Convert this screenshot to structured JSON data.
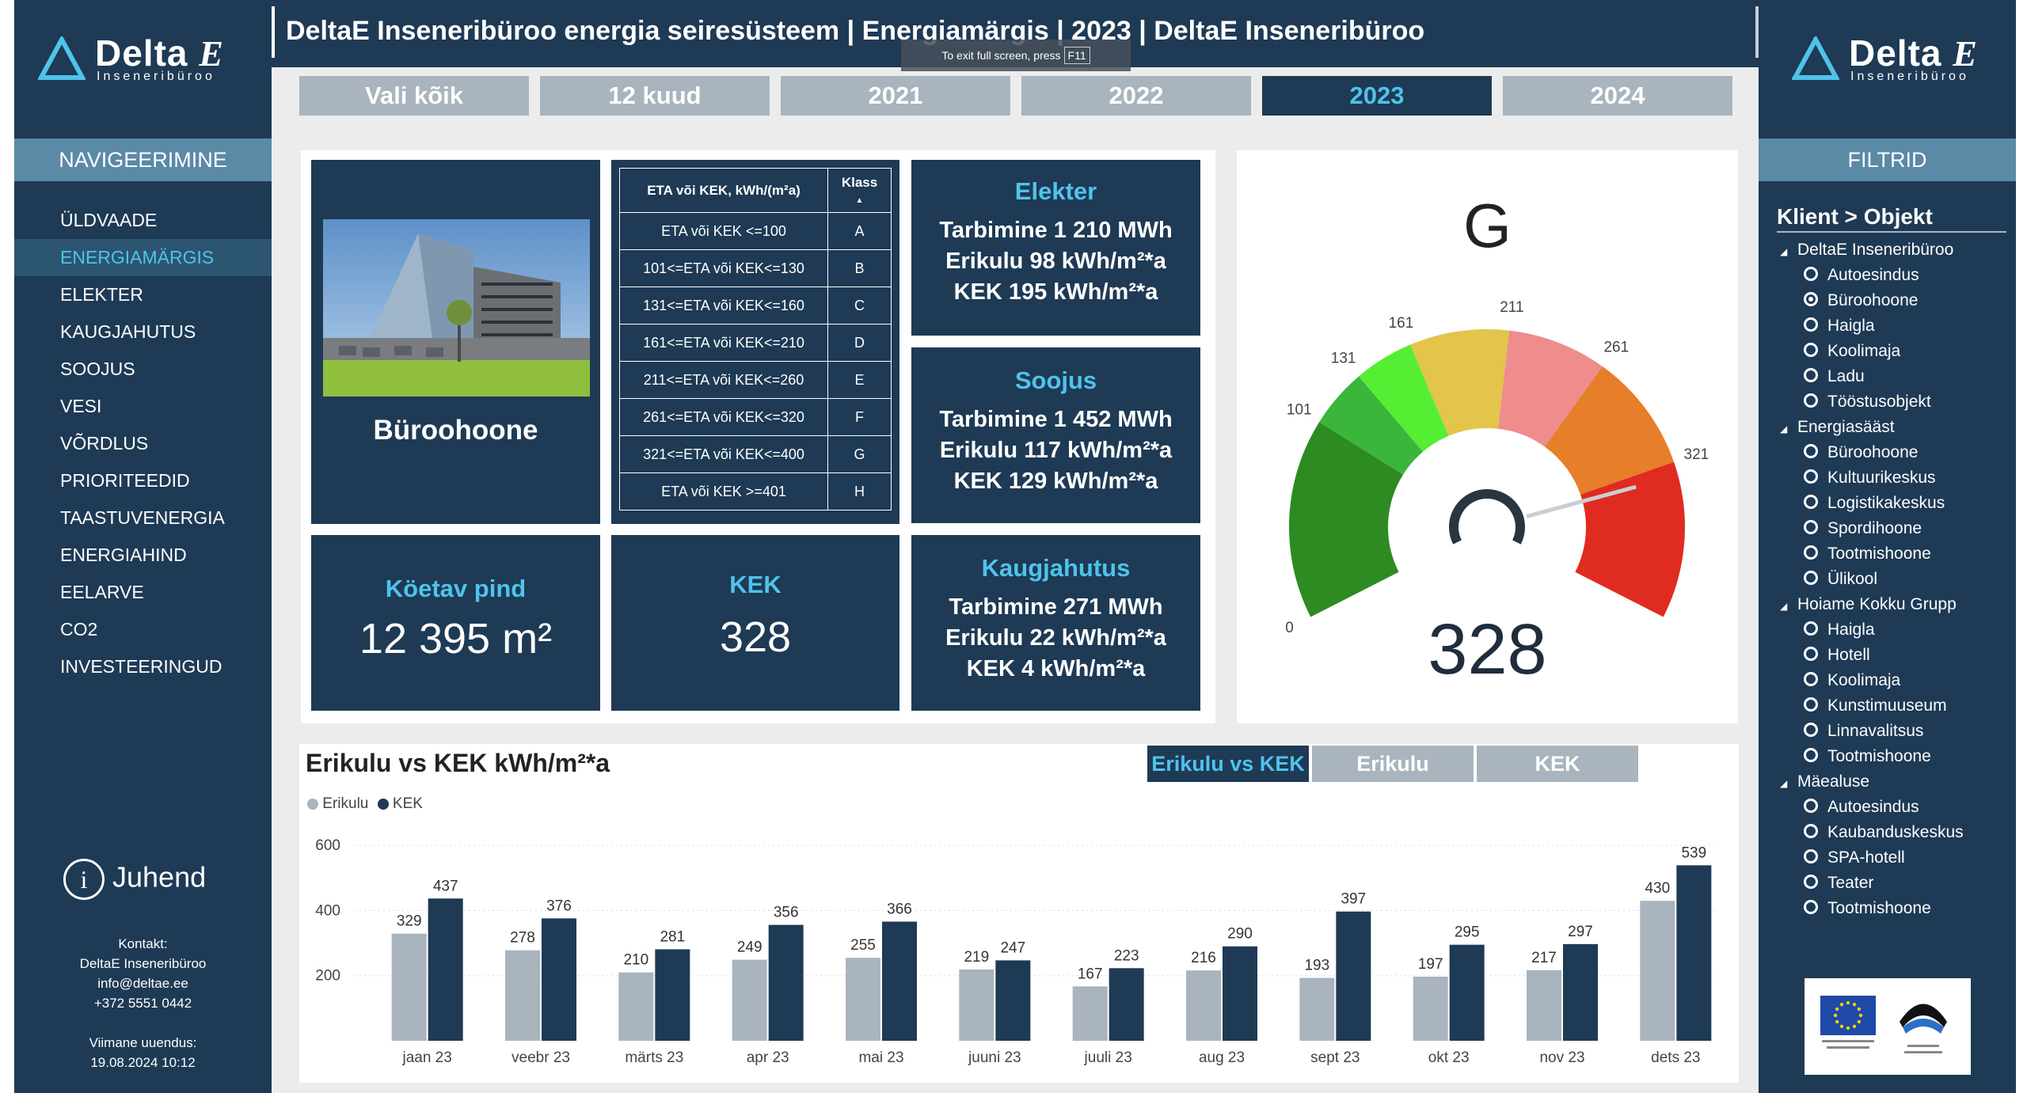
{
  "logo": {
    "brand": "Delta",
    "brand_e": "E",
    "sub": "Inseneribüroo"
  },
  "title": "DeltaE Inseneribüroo energia seiresüsteem | Energiamärgis | 2023 | DeltaE Inseneribüroo",
  "fullscreen_hint": {
    "text": "To exit full screen, press",
    "key": "F11"
  },
  "nav": {
    "header": "NAVIGEERIMINE",
    "items": [
      "ÜLDVAADE",
      "ENERGIAMÄRGIS",
      "ELEKTER",
      "KAUGJAHUTUS",
      "SOOJUS",
      "VESI",
      "VÕRDLUS",
      "PRIORITEEDID",
      "TAASTUVENERGIA",
      "ENERGIAHIND",
      "EELARVE",
      "CO2",
      "INVESTEERINGUD"
    ],
    "active_index": 1
  },
  "guide": {
    "icon": "i",
    "label": "Juhend"
  },
  "contact": {
    "lines": [
      "Kontakt:",
      "DeltaE Inseneribüroo",
      "info@deltae.ee",
      "+372 5551 0442"
    ],
    "updated_label": "Viimane uuendus:",
    "updated_value": "19.08.2024 10:12"
  },
  "years": {
    "buttons": [
      "Vali kõik",
      "12 kuud",
      "2021",
      "2022",
      "2023",
      "2024"
    ],
    "selected": "2023"
  },
  "building": {
    "name": "Büroohoone"
  },
  "class_table": {
    "headers": [
      "ETA või KEK, kWh/(m²a)",
      "Klass"
    ],
    "rows": [
      [
        "ETA või KEK <=100",
        "A"
      ],
      [
        "101<=ETA või KEK<=130",
        "B"
      ],
      [
        "131<=ETA või KEK<=160",
        "C"
      ],
      [
        "161<=ETA või KEK<=210",
        "D"
      ],
      [
        "211<=ETA või KEK<=260",
        "E"
      ],
      [
        "261<=ETA või KEK<=320",
        "F"
      ],
      [
        "321<=ETA või KEK<=400",
        "G"
      ],
      [
        "ETA või KEK >=401",
        "H"
      ]
    ]
  },
  "elekter": {
    "title": "Elekter",
    "lines": [
      "Tarbimine 1 210 MWh",
      "Erikulu 98 kWh/m²*a",
      "KEK 195 kWh/m²*a"
    ]
  },
  "soojus": {
    "title": "Soojus",
    "lines": [
      "Tarbimine 1 452 MWh",
      "Erikulu 117 kWh/m²*a",
      "KEK 129 kWh/m²*a"
    ]
  },
  "kaugjahutus": {
    "title": "Kaugjahutus",
    "lines": [
      "Tarbimine 271 MWh",
      "Erikulu 22 kWh/m²*a",
      "KEK 4 kWh/m²*a"
    ]
  },
  "heated_area": {
    "title": "Köetav pind",
    "value": "12 395 m²"
  },
  "kek": {
    "title": "KEK",
    "value": "328"
  },
  "gauge": {
    "class": "G",
    "value": 328,
    "value_text": "328",
    "ticks": [
      "0",
      "101",
      "131",
      "161",
      "211",
      "261",
      "321"
    ],
    "segments": [
      {
        "from": 0,
        "to": 101,
        "color": "#2e8b22"
      },
      {
        "from": 101,
        "to": 131,
        "color": "#3bb53a"
      },
      {
        "from": 131,
        "to": 161,
        "color": "#55ee33"
      },
      {
        "from": 161,
        "to": 211,
        "color": "#e2c54a"
      },
      {
        "from": 211,
        "to": 261,
        "color": "#ef8c8c"
      },
      {
        "from": 261,
        "to": 321,
        "color": "#e67e2a"
      },
      {
        "from": 321,
        "to": 400,
        "color": "#e02b20"
      }
    ],
    "max": 400
  },
  "tabs": {
    "buttons": [
      "Erikulu vs KEK",
      "Erikulu",
      "KEK"
    ],
    "selected": "Erikulu vs KEK"
  },
  "chart_data": {
    "type": "bar",
    "title": "Erikulu vs KEK kWh/m²*a",
    "categories": [
      "jaan 23",
      "veebr 23",
      "märts 23",
      "apr 23",
      "mai 23",
      "juuni 23",
      "juuli 23",
      "aug 23",
      "sept 23",
      "okt 23",
      "nov 23",
      "dets 23"
    ],
    "series": [
      {
        "name": "Erikulu",
        "color": "#a9b4be",
        "values": [
          329,
          278,
          210,
          249,
          255,
          219,
          167,
          216,
          193,
          197,
          217,
          430
        ]
      },
      {
        "name": "KEK",
        "color": "#1e3a55",
        "values": [
          437,
          376,
          281,
          356,
          366,
          247,
          223,
          290,
          397,
          295,
          297,
          539
        ]
      }
    ],
    "yticks": [
      200,
      400,
      600
    ],
    "ylim": [
      0,
      620
    ],
    "grid": true,
    "legend": "top-left"
  }
}
